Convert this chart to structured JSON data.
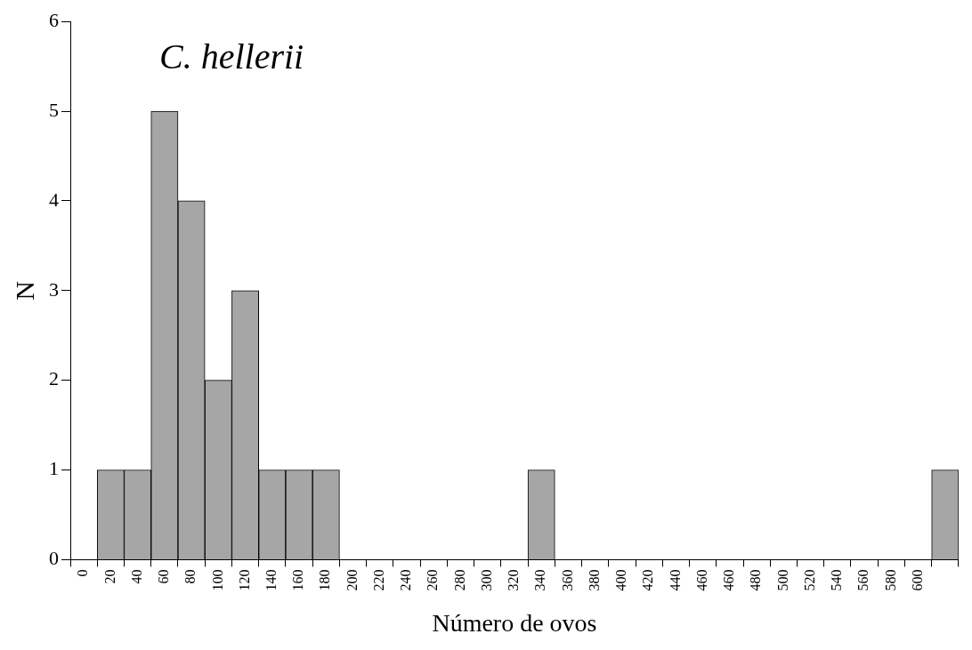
{
  "chart_data": {
    "type": "bar",
    "annotations": [
      "C. hellerii"
    ],
    "xlabel": "Número de ovos",
    "ylabel": "N",
    "categories": [
      "0",
      "20",
      "40",
      "60",
      "80",
      "100",
      "120",
      "140",
      "160",
      "180",
      "200",
      "220",
      "240",
      "260",
      "280",
      "300",
      "320",
      "340",
      "360",
      "380",
      "400",
      "420",
      "440",
      "460",
      "460",
      "480",
      "500",
      "520",
      "540",
      "560",
      "580",
      "600",
      null
    ],
    "values": [
      0,
      1,
      1,
      5,
      4,
      2,
      3,
      1,
      1,
      1,
      0,
      0,
      0,
      0,
      0,
      0,
      0,
      1,
      0,
      0,
      0,
      0,
      0,
      0,
      0,
      0,
      0,
      0,
      0,
      0,
      0,
      0,
      1
    ],
    "color": "#a6a6a6",
    "ylim": [
      0,
      6
    ],
    "yticks": [
      0,
      1,
      2,
      3,
      4,
      5,
      6
    ],
    "grid": false,
    "legend": false
  }
}
